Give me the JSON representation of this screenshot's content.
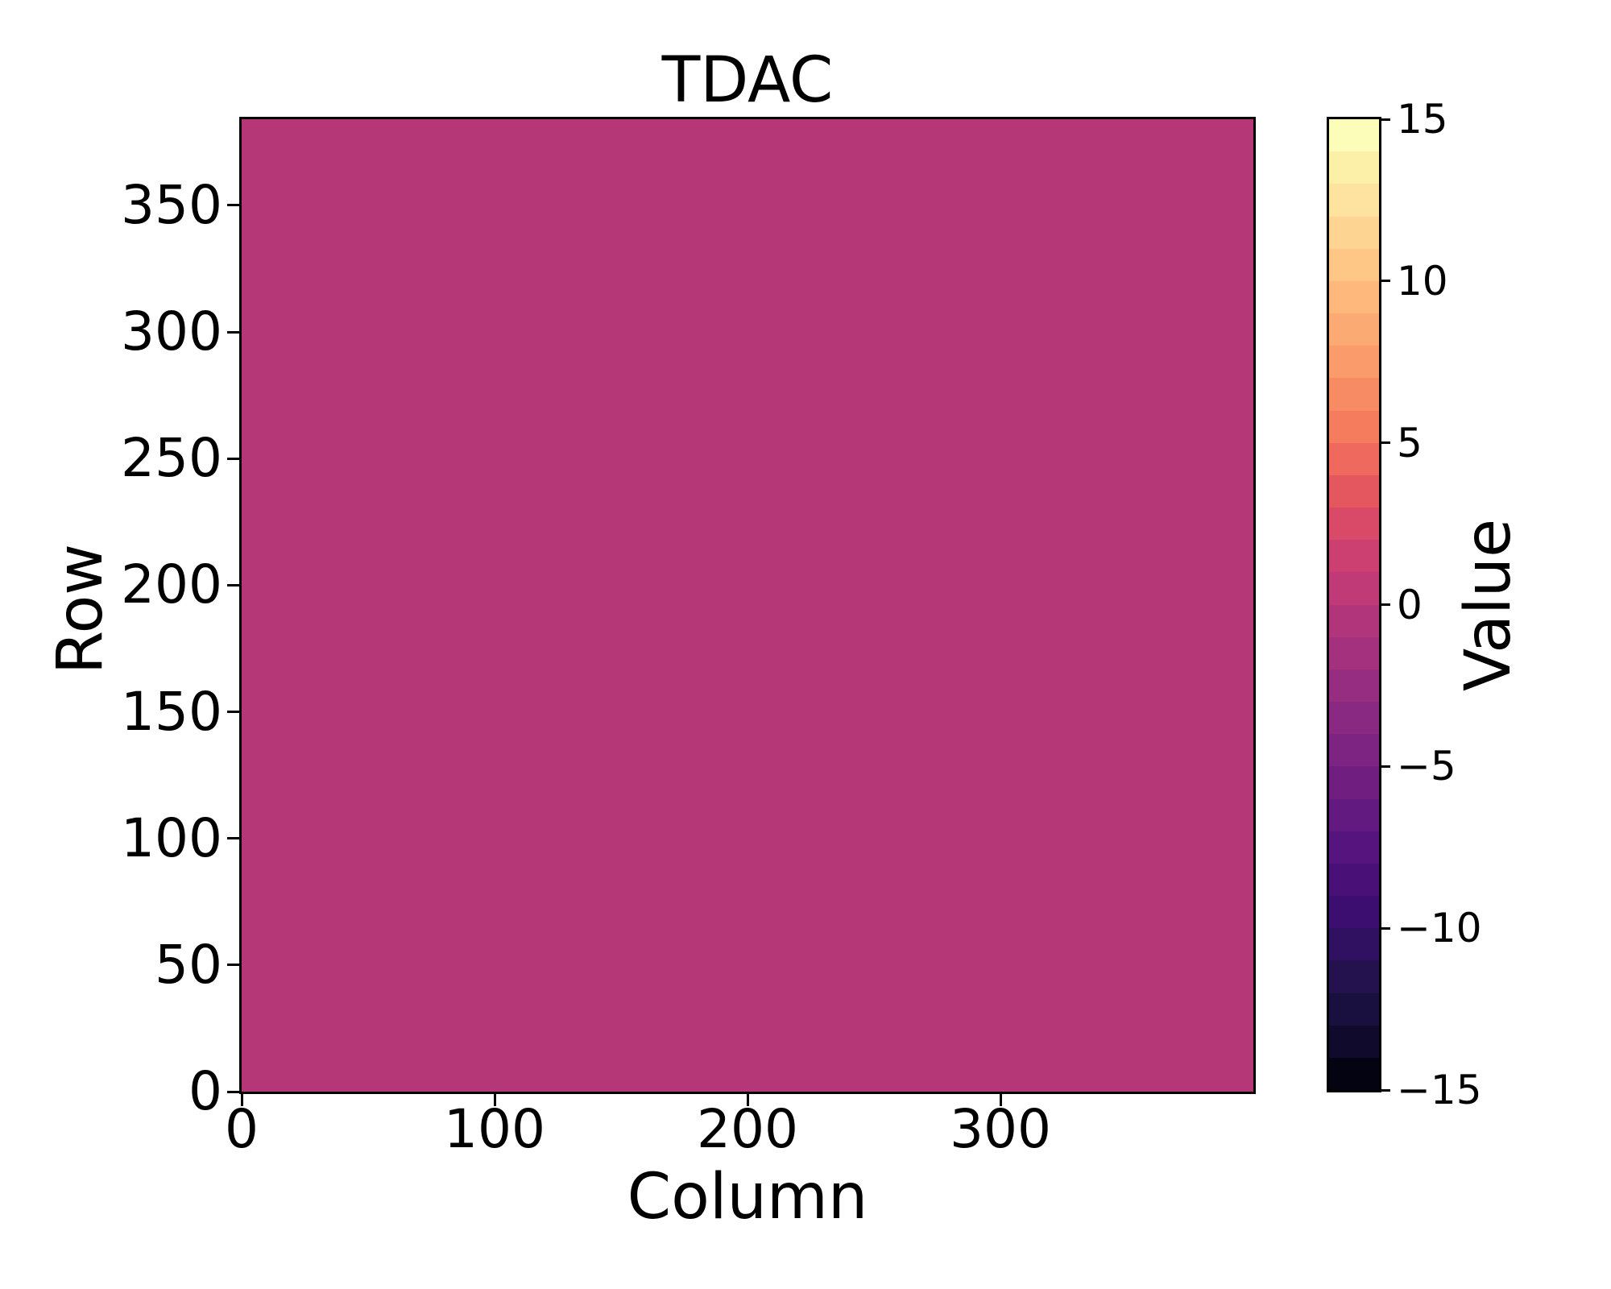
{
  "figure": {
    "title": "TDAC",
    "xlabel": "Column",
    "ylabel": "Row",
    "colorbar_label": "Value"
  },
  "chart_data": {
    "type": "heatmap",
    "title": "TDAC",
    "xlabel": "Column",
    "ylabel": "Row",
    "x_range": [
      0,
      400
    ],
    "y_range": [
      0,
      384
    ],
    "x_ticks": [
      0,
      100,
      200,
      300
    ],
    "y_ticks": [
      0,
      50,
      100,
      150,
      200,
      250,
      300,
      350
    ],
    "uniform_value": 0,
    "fill_color": "#b53778",
    "grid": false,
    "colorbar": {
      "label": "Value",
      "min": -15,
      "max": 15,
      "ticks": [
        15,
        10,
        5,
        0,
        -5,
        -10,
        -15
      ],
      "n_bands": 30,
      "colormap": "magma",
      "band_colors_top_to_bottom": [
        "#fbfdb8",
        "#fcf0a9",
        "#fde2a0",
        "#fdd492",
        "#fec786",
        "#feb87c",
        "#fcaa74",
        "#fa9b6c",
        "#f78c64",
        "#f57d5d",
        "#ef695e",
        "#e4575f",
        "#d84a68",
        "#cb4070",
        "#bf3a77",
        "#b1357b",
        "#a4317e",
        "#962d80",
        "#8a2981",
        "#7d2382",
        "#701f81",
        "#631a80",
        "#56157e",
        "#491078",
        "#3c0e6f",
        "#301060",
        "#24124e",
        "#1a1040",
        "#100b2d",
        "#040312"
      ]
    }
  }
}
